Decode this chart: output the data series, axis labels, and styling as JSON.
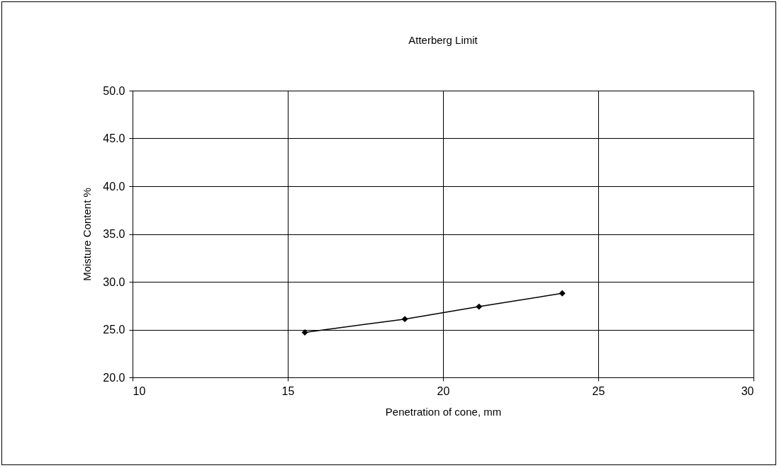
{
  "chart_data": {
    "type": "line",
    "title": "Atterberg Limit",
    "xlabel": "Penetration of cone, mm",
    "ylabel": "Moisture Content %",
    "x": [
      15.55,
      18.77,
      21.16,
      23.84
    ],
    "series": [
      {
        "color": "#000000",
        "values": [
          24.7,
          26.1,
          27.4,
          28.8
        ]
      }
    ],
    "xlim": [
      10,
      30
    ],
    "xticks": [
      10,
      15,
      20,
      25,
      30
    ],
    "ylim": [
      20,
      50
    ],
    "yticks": [
      {
        "value": 20,
        "label": "20.0"
      },
      {
        "value": 25,
        "label": "25.0"
      },
      {
        "value": 30,
        "label": "30.0"
      },
      {
        "value": 35,
        "label": "35.0"
      },
      {
        "value": 40,
        "label": "40.0"
      },
      {
        "value": 45,
        "label": "45.0"
      },
      {
        "value": 50,
        "label": "50.0"
      }
    ],
    "grid": true,
    "marker": "diamond",
    "line_style": "solid"
  }
}
